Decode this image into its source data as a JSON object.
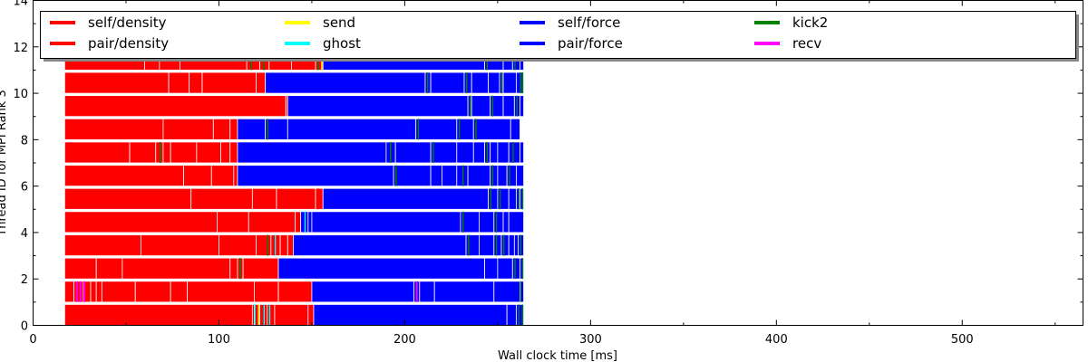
{
  "chart_data": {
    "type": "bar",
    "orientation": "horizontal",
    "stacked": true,
    "xlabel": "Wall clock time [ms]",
    "ylabel": "Thread ID for MPI Rank 3",
    "xlim": [
      0,
      565
    ],
    "ylim": [
      0,
      14
    ],
    "xticks": [
      "0",
      "100",
      "200",
      "300",
      "400",
      "500"
    ],
    "yticks": [
      "0",
      "2",
      "4",
      "6",
      "8",
      "10",
      "12",
      "14"
    ],
    "legend": {
      "placement": "top",
      "entries": [
        {
          "name": "self/density",
          "color": "#ff0000"
        },
        {
          "name": "pair/density",
          "color": "#ff0000"
        },
        {
          "name": "send",
          "color": "#ffff00"
        },
        {
          "name": "ghost",
          "color": "#00ffff"
        },
        {
          "name": "self/force",
          "color": "#0000ff"
        },
        {
          "name": "pair/force",
          "color": "#0000ff"
        },
        {
          "name": "kick2",
          "color": "#008000"
        },
        {
          "name": "recv",
          "color": "#ff00ff"
        }
      ]
    },
    "colors": {
      "density": "#ff0000",
      "force": "#0000ff",
      "kick2": "#008000",
      "send": "#ffff00",
      "ghost": "#00ffff",
      "recv": "#ff00ff"
    },
    "threads": [
      {
        "thread": 0,
        "density": [
          [
            17,
            118
          ],
          [
            118,
            119
          ],
          [
            119,
            122
          ],
          [
            122,
            126
          ],
          [
            126,
            130
          ],
          [
            130,
            148
          ],
          [
            148,
            151
          ]
        ],
        "force": [
          [
            151,
            255
          ],
          [
            255,
            260
          ],
          [
            260,
            264
          ]
        ],
        "marks": [
          {
            "x": 119,
            "type": "ghost"
          },
          {
            "x": 121,
            "type": "send"
          },
          {
            "x": 124,
            "type": "ghost"
          },
          {
            "x": 127,
            "type": "ghost"
          },
          {
            "x": 261,
            "type": "kick2"
          },
          {
            "x": 263,
            "type": "kick2"
          }
        ]
      },
      {
        "thread": 1,
        "density": [
          [
            17,
            22
          ],
          [
            22,
            27
          ],
          [
            27,
            31
          ],
          [
            31,
            34
          ],
          [
            34,
            37
          ],
          [
            37,
            55
          ],
          [
            55,
            74
          ],
          [
            74,
            83
          ],
          [
            83,
            119
          ],
          [
            119,
            132
          ],
          [
            132,
            150
          ]
        ],
        "force": [
          [
            150,
            205
          ],
          [
            205,
            208
          ],
          [
            208,
            216
          ],
          [
            216,
            248
          ],
          [
            248,
            262
          ],
          [
            262,
            264
          ]
        ],
        "marks": [
          {
            "x": 23,
            "type": "recv"
          },
          {
            "x": 25,
            "type": "recv"
          },
          {
            "x": 27,
            "type": "recv"
          },
          {
            "x": 206,
            "type": "recv"
          },
          {
            "x": 262,
            "type": "kick2"
          }
        ]
      },
      {
        "thread": 2,
        "density": [
          [
            17,
            34
          ],
          [
            34,
            48
          ],
          [
            48,
            106
          ],
          [
            106,
            110
          ],
          [
            110,
            113
          ],
          [
            113,
            132
          ]
        ],
        "force": [
          [
            132,
            243
          ],
          [
            243,
            250
          ],
          [
            250,
            258
          ],
          [
            258,
            262
          ],
          [
            262,
            264
          ]
        ],
        "marks": [
          {
            "x": 111,
            "type": "kick2"
          },
          {
            "x": 259,
            "type": "kick2"
          },
          {
            "x": 263,
            "type": "kick2"
          }
        ]
      },
      {
        "thread": 3,
        "density": [
          [
            17,
            58
          ],
          [
            58,
            100
          ],
          [
            100,
            120
          ],
          [
            120,
            128
          ],
          [
            128,
            133
          ],
          [
            133,
            137
          ],
          [
            137,
            140
          ]
        ],
        "force": [
          [
            140,
            233
          ],
          [
            233,
            240
          ],
          [
            240,
            248
          ],
          [
            248,
            252
          ],
          [
            252,
            256
          ],
          [
            256,
            259
          ],
          [
            259,
            261
          ],
          [
            261,
            264
          ]
        ],
        "marks": [
          {
            "x": 126,
            "type": "kick2"
          },
          {
            "x": 130,
            "type": "ghost"
          },
          {
            "x": 234,
            "type": "kick2"
          },
          {
            "x": 249,
            "type": "kick2"
          },
          {
            "x": 253,
            "type": "kick2"
          },
          {
            "x": 262,
            "type": "kick2"
          }
        ]
      },
      {
        "thread": 4,
        "density": [
          [
            17,
            99
          ],
          [
            99,
            116
          ],
          [
            116,
            141
          ],
          [
            141,
            144
          ]
        ],
        "force": [
          [
            144,
            148
          ],
          [
            148,
            150
          ],
          [
            150,
            230
          ],
          [
            230,
            240
          ],
          [
            240,
            248
          ],
          [
            248,
            253
          ],
          [
            253,
            256
          ],
          [
            256,
            264
          ]
        ],
        "marks": [
          {
            "x": 146,
            "type": "ghost"
          },
          {
            "x": 231,
            "type": "kick2"
          },
          {
            "x": 249,
            "type": "kick2"
          }
        ]
      },
      {
        "thread": 5,
        "density": [
          [
            17,
            85
          ],
          [
            85,
            118
          ],
          [
            118,
            131
          ],
          [
            131,
            152
          ],
          [
            152,
            156
          ]
        ],
        "force": [
          [
            156,
            245
          ],
          [
            245,
            250
          ],
          [
            250,
            256
          ],
          [
            256,
            260
          ],
          [
            260,
            262
          ],
          [
            262,
            264
          ]
        ],
        "marks": [
          {
            "x": 153,
            "type": "density"
          },
          {
            "x": 246,
            "type": "kick2"
          },
          {
            "x": 251,
            "type": "kick2"
          },
          {
            "x": 261,
            "type": "kick2"
          },
          {
            "x": 263,
            "type": "kick2"
          }
        ]
      },
      {
        "thread": 6,
        "density": [
          [
            17,
            81
          ],
          [
            81,
            96
          ],
          [
            96,
            108
          ],
          [
            108,
            110
          ]
        ],
        "force": [
          [
            110,
            194
          ],
          [
            194,
            214
          ],
          [
            214,
            220
          ],
          [
            220,
            228
          ],
          [
            228,
            234
          ],
          [
            234,
            246
          ],
          [
            246,
            250
          ],
          [
            250,
            255
          ],
          [
            255,
            260
          ],
          [
            260,
            264
          ]
        ],
        "marks": [
          {
            "x": 195,
            "type": "kick2"
          },
          {
            "x": 231,
            "type": "kick2"
          },
          {
            "x": 247,
            "type": "kick2"
          },
          {
            "x": 256,
            "type": "kick2"
          }
        ]
      },
      {
        "thread": 7,
        "density": [
          [
            17,
            52
          ],
          [
            52,
            66
          ],
          [
            66,
            70
          ],
          [
            70,
            74
          ],
          [
            74,
            88
          ],
          [
            88,
            101
          ],
          [
            101,
            106
          ],
          [
            106,
            110
          ]
        ],
        "force": [
          [
            110,
            190
          ],
          [
            190,
            195
          ],
          [
            195,
            214
          ],
          [
            214,
            228
          ],
          [
            228,
            237
          ],
          [
            237,
            243
          ],
          [
            243,
            246
          ],
          [
            246,
            250
          ],
          [
            250,
            256
          ],
          [
            256,
            262
          ],
          [
            262,
            264
          ]
        ],
        "marks": [
          {
            "x": 68,
            "type": "kick2"
          },
          {
            "x": 192,
            "type": "kick2"
          },
          {
            "x": 215,
            "type": "kick2"
          },
          {
            "x": 244,
            "type": "kick2"
          },
          {
            "x": 258,
            "type": "kick2"
          }
        ]
      },
      {
        "thread": 8,
        "density": [
          [
            17,
            70
          ],
          [
            70,
            97
          ],
          [
            97,
            106
          ],
          [
            106,
            110
          ]
        ],
        "force": [
          [
            110,
            125
          ],
          [
            125,
            137
          ],
          [
            137,
            206
          ],
          [
            206,
            228
          ],
          [
            228,
            237
          ],
          [
            237,
            257
          ],
          [
            257,
            262
          ]
        ],
        "marks": [
          {
            "x": 126,
            "type": "kick2"
          },
          {
            "x": 207,
            "type": "kick2"
          },
          {
            "x": 229,
            "type": "kick2"
          },
          {
            "x": 238,
            "type": "kick2"
          }
        ]
      },
      {
        "thread": 9,
        "density": [
          [
            17,
            136
          ],
          [
            136,
            137
          ]
        ],
        "force": [
          [
            137,
            234
          ],
          [
            234,
            236
          ],
          [
            236,
            246
          ],
          [
            246,
            253
          ],
          [
            253,
            259
          ],
          [
            259,
            262
          ],
          [
            262,
            264
          ]
        ],
        "marks": [
          {
            "x": 235,
            "type": "kick2"
          },
          {
            "x": 247,
            "type": "kick2"
          },
          {
            "x": 260,
            "type": "kick2"
          }
        ]
      },
      {
        "thread": 10,
        "density": [
          [
            17,
            73
          ],
          [
            73,
            84
          ],
          [
            84,
            91
          ],
          [
            91,
            120
          ],
          [
            120,
            125
          ]
        ],
        "force": [
          [
            125,
            211
          ],
          [
            211,
            214
          ],
          [
            214,
            232
          ],
          [
            232,
            236
          ],
          [
            236,
            245
          ],
          [
            245,
            251
          ],
          [
            251,
            253
          ],
          [
            253,
            260
          ],
          [
            260,
            264
          ]
        ],
        "marks": [
          {
            "x": 212,
            "type": "kick2"
          },
          {
            "x": 233,
            "type": "kick2"
          },
          {
            "x": 252,
            "type": "kick2"
          },
          {
            "x": 262,
            "type": "kick2"
          },
          {
            "x": 263,
            "type": "kick2"
          }
        ]
      },
      {
        "thread": 11,
        "density": [
          [
            17,
            60
          ],
          [
            60,
            68
          ],
          [
            68,
            79
          ],
          [
            79,
            115
          ],
          [
            115,
            122
          ],
          [
            122,
            127
          ],
          [
            127,
            139
          ],
          [
            139,
            152
          ],
          [
            152,
            156
          ]
        ],
        "force": [
          [
            156,
            243
          ],
          [
            243,
            253
          ],
          [
            253,
            258
          ],
          [
            258,
            262
          ],
          [
            262,
            264
          ]
        ],
        "marks": [
          {
            "x": 117,
            "type": "kick2"
          },
          {
            "x": 124,
            "type": "kick2"
          },
          {
            "x": 153,
            "type": "kick2"
          },
          {
            "x": 155,
            "type": "send"
          },
          {
            "x": 244,
            "type": "kick2"
          },
          {
            "x": 259,
            "type": "kick2"
          }
        ]
      }
    ]
  }
}
